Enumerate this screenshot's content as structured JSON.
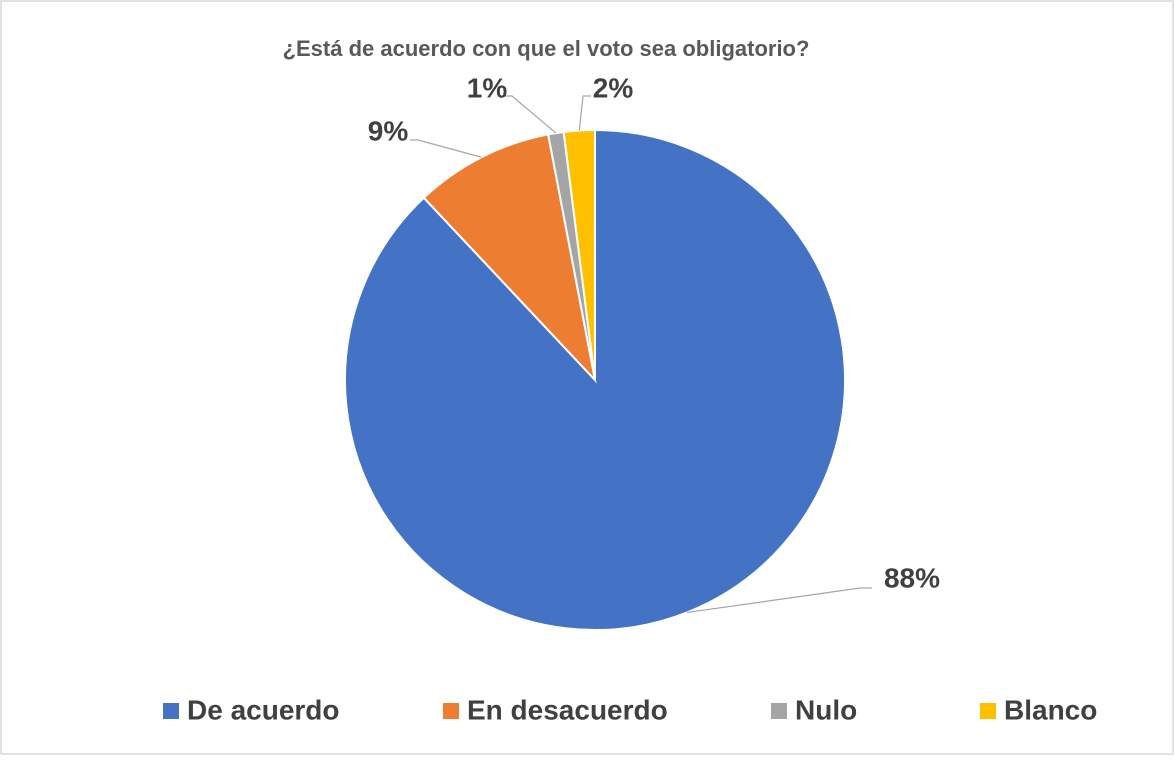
{
  "chart_data": {
    "type": "pie",
    "title": "¿Está de acuerdo con que el voto sea obligatorio?",
    "categories": [
      "De acuerdo",
      "En desacuerdo",
      "Nulo",
      "Blanco"
    ],
    "values": [
      88,
      9,
      1,
      2
    ],
    "value_labels": [
      "88%",
      "9%",
      "1%",
      "2%"
    ],
    "colors": [
      "#4472c4",
      "#ed7d31",
      "#a5a5a5",
      "#ffc000"
    ],
    "legend": "bottom"
  }
}
